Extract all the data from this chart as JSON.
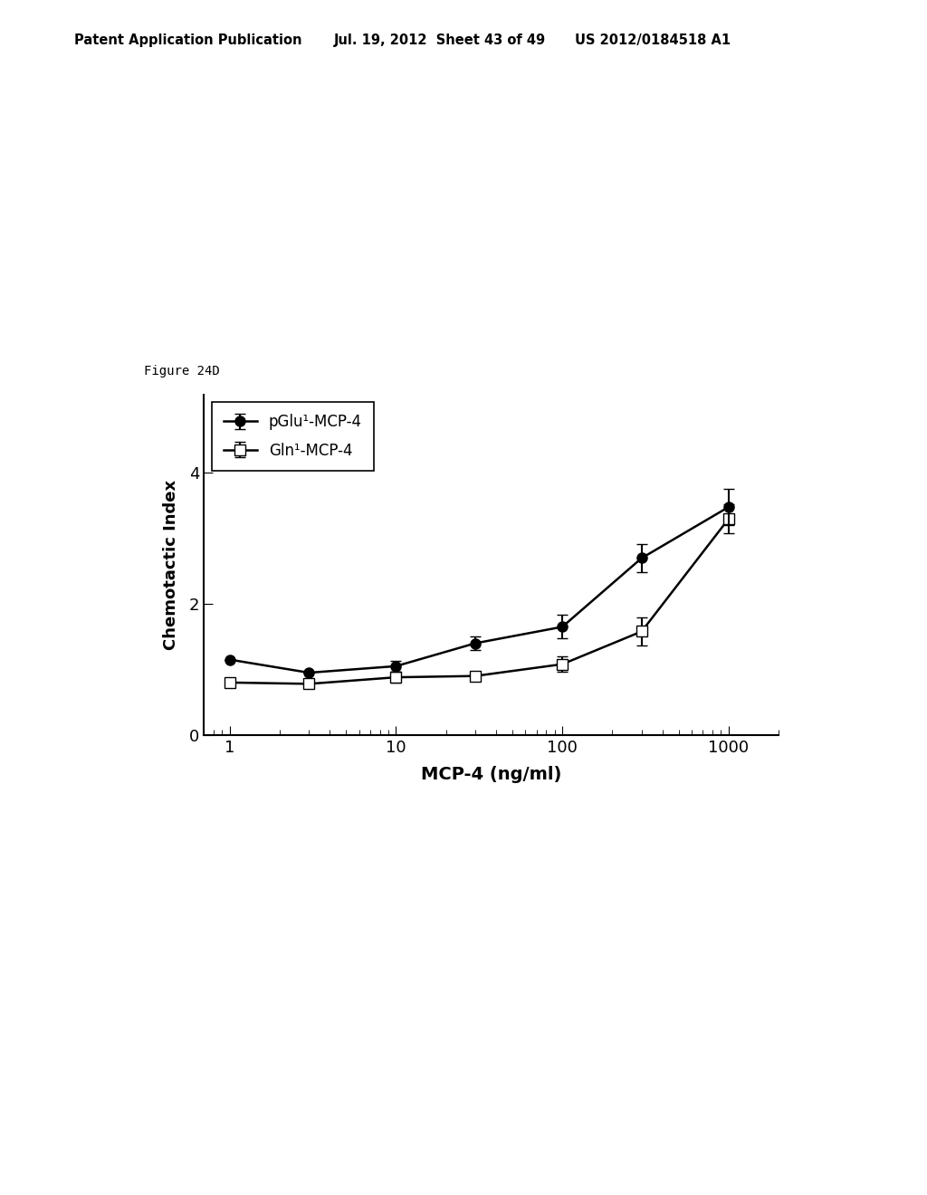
{
  "figure_label": "Figure 24D",
  "header_left": "Patent Application Publication",
  "header_mid": "Jul. 19, 2012  Sheet 43 of 49",
  "header_right": "US 2012/0184518 A1",
  "xlabel": "MCP-4 (ng/ml)",
  "ylabel": "Chemotactic Index",
  "xlim": [
    0.7,
    2000
  ],
  "ylim": [
    0,
    5.2
  ],
  "yticks": [
    0,
    2,
    4
  ],
  "series1_label": "pGlu¹-MCP-4",
  "series2_label": "Gln¹-MCP-4",
  "series1_x": [
    1,
    3,
    10,
    30,
    100,
    300,
    1000
  ],
  "series1_y": [
    1.15,
    0.95,
    1.05,
    1.4,
    1.65,
    2.7,
    3.48
  ],
  "series1_yerr": [
    0.0,
    0.0,
    0.08,
    0.1,
    0.18,
    0.22,
    0.28
  ],
  "series2_x": [
    1,
    3,
    10,
    30,
    100,
    300,
    1000
  ],
  "series2_y": [
    0.8,
    0.78,
    0.88,
    0.9,
    1.08,
    1.58,
    3.3
  ],
  "series2_yerr": [
    0.0,
    0.0,
    0.08,
    0.05,
    0.12,
    0.22,
    0.22
  ],
  "background_color": "#ffffff",
  "line_color": "#000000"
}
